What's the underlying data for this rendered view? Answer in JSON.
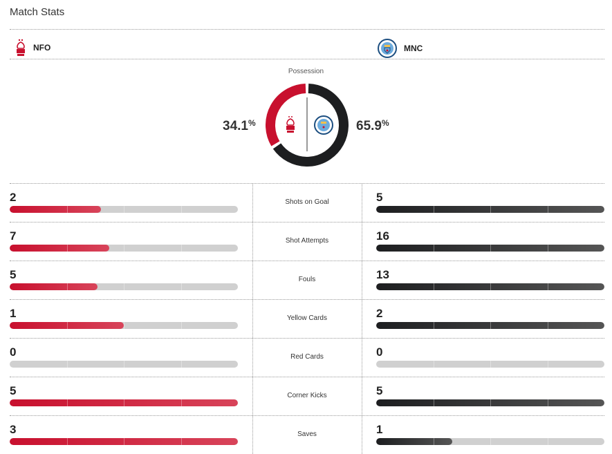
{
  "title": "Match Stats",
  "home": {
    "abbr": "NFO",
    "possession": "34.1",
    "color": "#c8102e"
  },
  "away": {
    "abbr": "MNC",
    "possession": "65.9",
    "color": "#1d1e20"
  },
  "possession_label": "Possession",
  "percent_sign": "%",
  "stats": [
    {
      "label": "Shots on Goal",
      "home": 2,
      "away": 5
    },
    {
      "label": "Shot Attempts",
      "home": 7,
      "away": 16
    },
    {
      "label": "Fouls",
      "home": 5,
      "away": 13
    },
    {
      "label": "Yellow Cards",
      "home": 1,
      "away": 2
    },
    {
      "label": "Red Cards",
      "home": 0,
      "away": 0
    },
    {
      "label": "Corner Kicks",
      "home": 5,
      "away": 5
    },
    {
      "label": "Saves",
      "home": 3,
      "away": 1
    }
  ]
}
